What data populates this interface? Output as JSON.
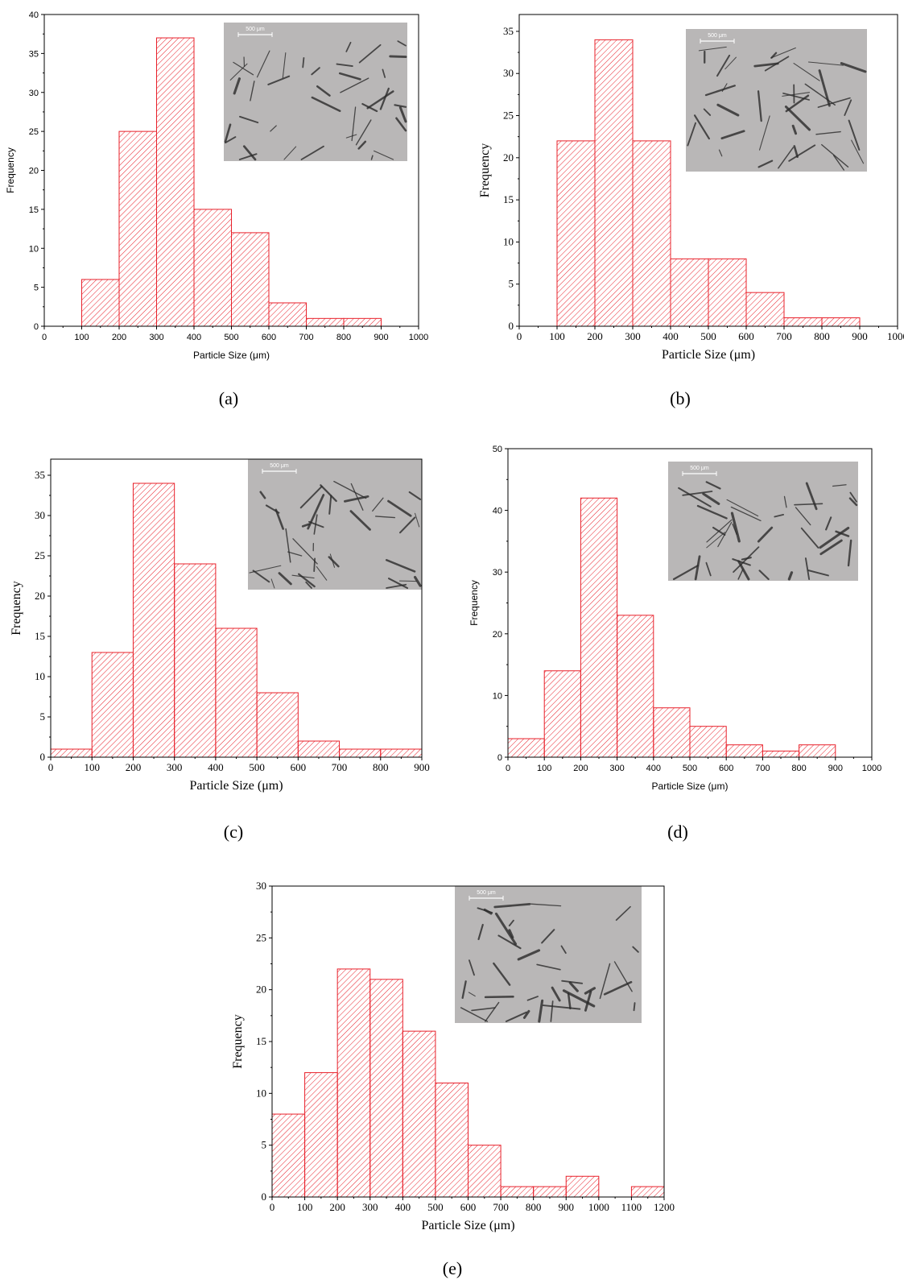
{
  "colors": {
    "bar_stroke": "#e8202a",
    "hatch": "#e8202a",
    "axis": "#000000",
    "inset_bg": "#b9b7b7",
    "inset_crystal": "#2b2b2b"
  },
  "chart_data": [
    {
      "id": "a",
      "type": "bar",
      "caption": "(a)",
      "xlabel": "Particle Size (μm)",
      "ylabel": "Frequency",
      "xlim": [
        0,
        1000
      ],
      "ylim": [
        0,
        40
      ],
      "xticks": [
        0,
        100,
        200,
        300,
        400,
        500,
        600,
        700,
        800,
        900,
        1000
      ],
      "yticks": [
        0,
        5,
        10,
        15,
        20,
        25,
        30,
        35,
        40
      ],
      "bins": [
        [
          100,
          200
        ],
        [
          200,
          300
        ],
        [
          300,
          400
        ],
        [
          400,
          500
        ],
        [
          500,
          600
        ],
        [
          600,
          700
        ],
        [
          700,
          800
        ],
        [
          800,
          900
        ]
      ],
      "values": [
        6,
        25,
        37,
        15,
        12,
        3,
        1,
        1
      ],
      "inset_scale_label": "500 μm"
    },
    {
      "id": "b",
      "type": "bar",
      "caption": "(b)",
      "xlabel": "Particle Size (μm)",
      "ylabel": "Frequency",
      "xlim": [
        0,
        1000
      ],
      "ylim": [
        0,
        37
      ],
      "xticks": [
        0,
        100,
        200,
        300,
        400,
        500,
        600,
        700,
        800,
        900,
        1000
      ],
      "yticks": [
        0,
        5,
        10,
        15,
        20,
        25,
        30,
        35
      ],
      "bins": [
        [
          100,
          200
        ],
        [
          200,
          300
        ],
        [
          300,
          400
        ],
        [
          400,
          500
        ],
        [
          500,
          600
        ],
        [
          600,
          700
        ],
        [
          700,
          800
        ],
        [
          800,
          900
        ]
      ],
      "values": [
        22,
        34,
        22,
        8,
        8,
        4,
        1,
        1
      ],
      "inset_scale_label": "500 μm"
    },
    {
      "id": "c",
      "type": "bar",
      "caption": "(c)",
      "xlabel": "Particle Size (μm)",
      "ylabel": "Frequency",
      "xlim": [
        0,
        900
      ],
      "ylim": [
        0,
        37
      ],
      "xticks": [
        0,
        100,
        200,
        300,
        400,
        500,
        600,
        700,
        800,
        900
      ],
      "yticks": [
        0,
        5,
        10,
        15,
        20,
        25,
        30,
        35
      ],
      "bins": [
        [
          0,
          100
        ],
        [
          100,
          200
        ],
        [
          200,
          300
        ],
        [
          300,
          400
        ],
        [
          400,
          500
        ],
        [
          500,
          600
        ],
        [
          600,
          700
        ],
        [
          700,
          800
        ],
        [
          800,
          900
        ]
      ],
      "values": [
        1,
        13,
        34,
        24,
        16,
        8,
        2,
        1,
        1
      ],
      "inset_scale_label": "500 μm"
    },
    {
      "id": "d",
      "type": "bar",
      "caption": "(d)",
      "xlabel": "Particle Size (μm)",
      "ylabel": "Frequency",
      "xlim": [
        0,
        1000
      ],
      "ylim": [
        0,
        50
      ],
      "xticks": [
        0,
        100,
        200,
        300,
        400,
        500,
        600,
        700,
        800,
        900,
        1000
      ],
      "yticks": [
        0,
        10,
        20,
        30,
        40,
        50
      ],
      "bins": [
        [
          0,
          100
        ],
        [
          100,
          200
        ],
        [
          200,
          300
        ],
        [
          300,
          400
        ],
        [
          400,
          500
        ],
        [
          500,
          600
        ],
        [
          600,
          700
        ],
        [
          700,
          800
        ],
        [
          800,
          900
        ]
      ],
      "values": [
        3,
        14,
        42,
        23,
        8,
        5,
        2,
        1,
        2
      ],
      "inset_scale_label": "500 μm"
    },
    {
      "id": "e",
      "type": "bar",
      "caption": "(e)",
      "xlabel": "Particle Size (μm)",
      "ylabel": "Frequency",
      "xlim": [
        0,
        1200
      ],
      "ylim": [
        0,
        30
      ],
      "xticks": [
        0,
        100,
        200,
        300,
        400,
        500,
        600,
        700,
        800,
        900,
        1000,
        1100,
        1200
      ],
      "yticks": [
        0,
        5,
        10,
        15,
        20,
        25,
        30
      ],
      "bins": [
        [
          0,
          100
        ],
        [
          100,
          200
        ],
        [
          200,
          300
        ],
        [
          300,
          400
        ],
        [
          400,
          500
        ],
        [
          500,
          600
        ],
        [
          600,
          700
        ],
        [
          700,
          800
        ],
        [
          800,
          900
        ],
        [
          900,
          1000
        ],
        [
          1100,
          1200
        ]
      ],
      "values": [
        8,
        12,
        22,
        21,
        16,
        11,
        5,
        1,
        1,
        2,
        1
      ],
      "inset_scale_label": "500 μm"
    }
  ]
}
